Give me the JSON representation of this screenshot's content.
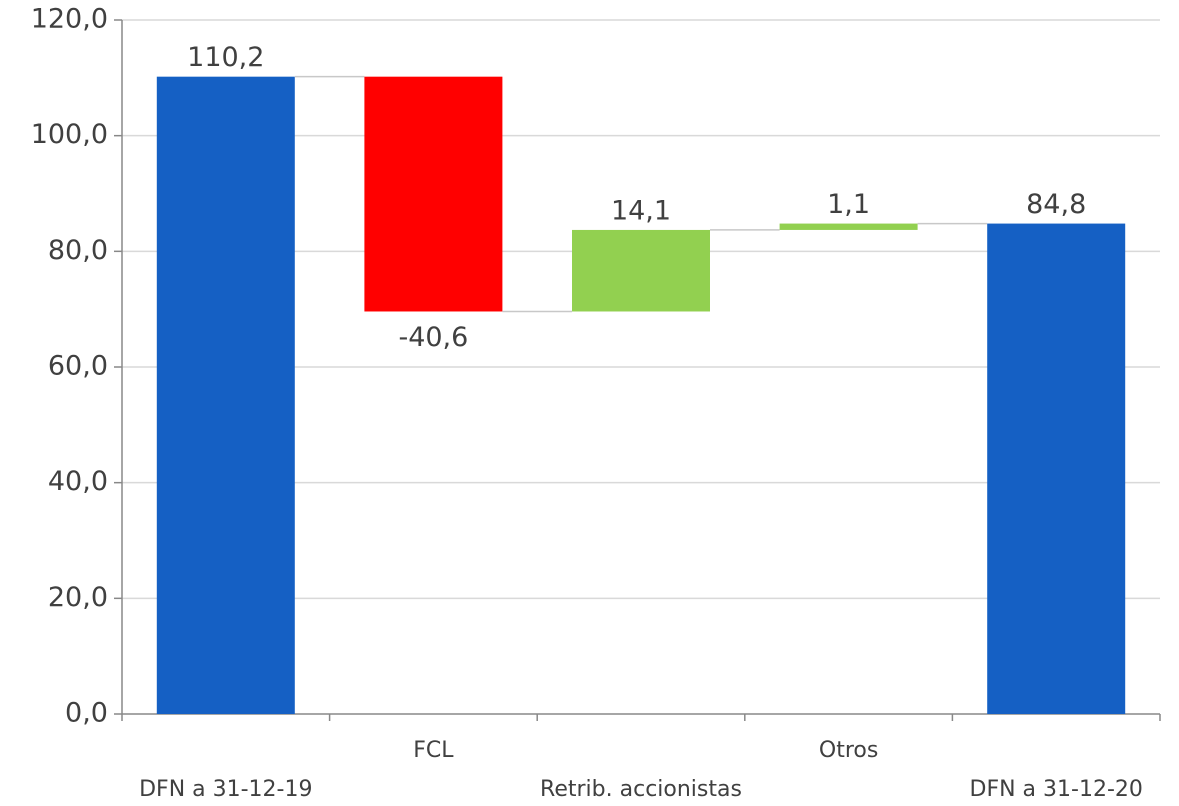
{
  "chart_data": {
    "type": "waterfall",
    "categories": [
      "DFN a 31-12-19",
      "FCL",
      "Retrib. accionistas",
      "Otros",
      "DFN a 31-12-20"
    ],
    "values": [
      110.2,
      -40.6,
      14.1,
      1.1,
      84.8
    ],
    "value_labels": [
      "110,2",
      "-40,6",
      "14,1",
      "1,1",
      "84,8"
    ],
    "totals": [
      true,
      false,
      false,
      false,
      true
    ],
    "colors": [
      "#1560c4",
      "#ff0000",
      "#92d050",
      "#92d050",
      "#1560c4"
    ],
    "ylim": [
      0,
      120
    ],
    "yticks": [
      {
        "value": 0,
        "label": "0,0"
      },
      {
        "value": 20,
        "label": "20,0"
      },
      {
        "value": 40,
        "label": "40,0"
      },
      {
        "value": 60,
        "label": "60,0"
      },
      {
        "value": 80,
        "label": "80,0"
      },
      {
        "value": 100,
        "label": "100,0"
      },
      {
        "value": 120,
        "label": "120,0"
      }
    ],
    "grid": true
  }
}
